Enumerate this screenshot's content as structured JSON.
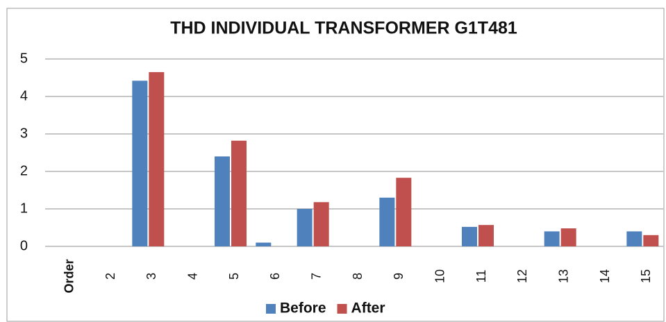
{
  "chart_data": {
    "type": "bar",
    "title": "THD INDIVIDUAL TRANSFORMER G1T481",
    "categories": [
      "Order",
      "2",
      "3",
      "4",
      "5",
      "6",
      "7",
      "8",
      "9",
      "10",
      "11",
      "12",
      "13",
      "14",
      "15"
    ],
    "series": [
      {
        "name": "Before",
        "color": "#4f81bd",
        "values": [
          0,
          0,
          4.42,
          0,
          2.4,
          0.1,
          1.0,
          0,
          1.3,
          0,
          0.52,
          0,
          0.4,
          0,
          0.4
        ]
      },
      {
        "name": "After",
        "color": "#c0504d",
        "values": [
          0,
          0,
          4.65,
          0,
          2.82,
          0,
          1.18,
          0,
          1.83,
          0,
          0.57,
          0,
          0.48,
          0,
          0.3
        ]
      }
    ],
    "ylim": [
      0,
      5
    ],
    "yticks": [
      0,
      1,
      2,
      3,
      4,
      5
    ],
    "grid": true,
    "legend": "bottom"
  }
}
